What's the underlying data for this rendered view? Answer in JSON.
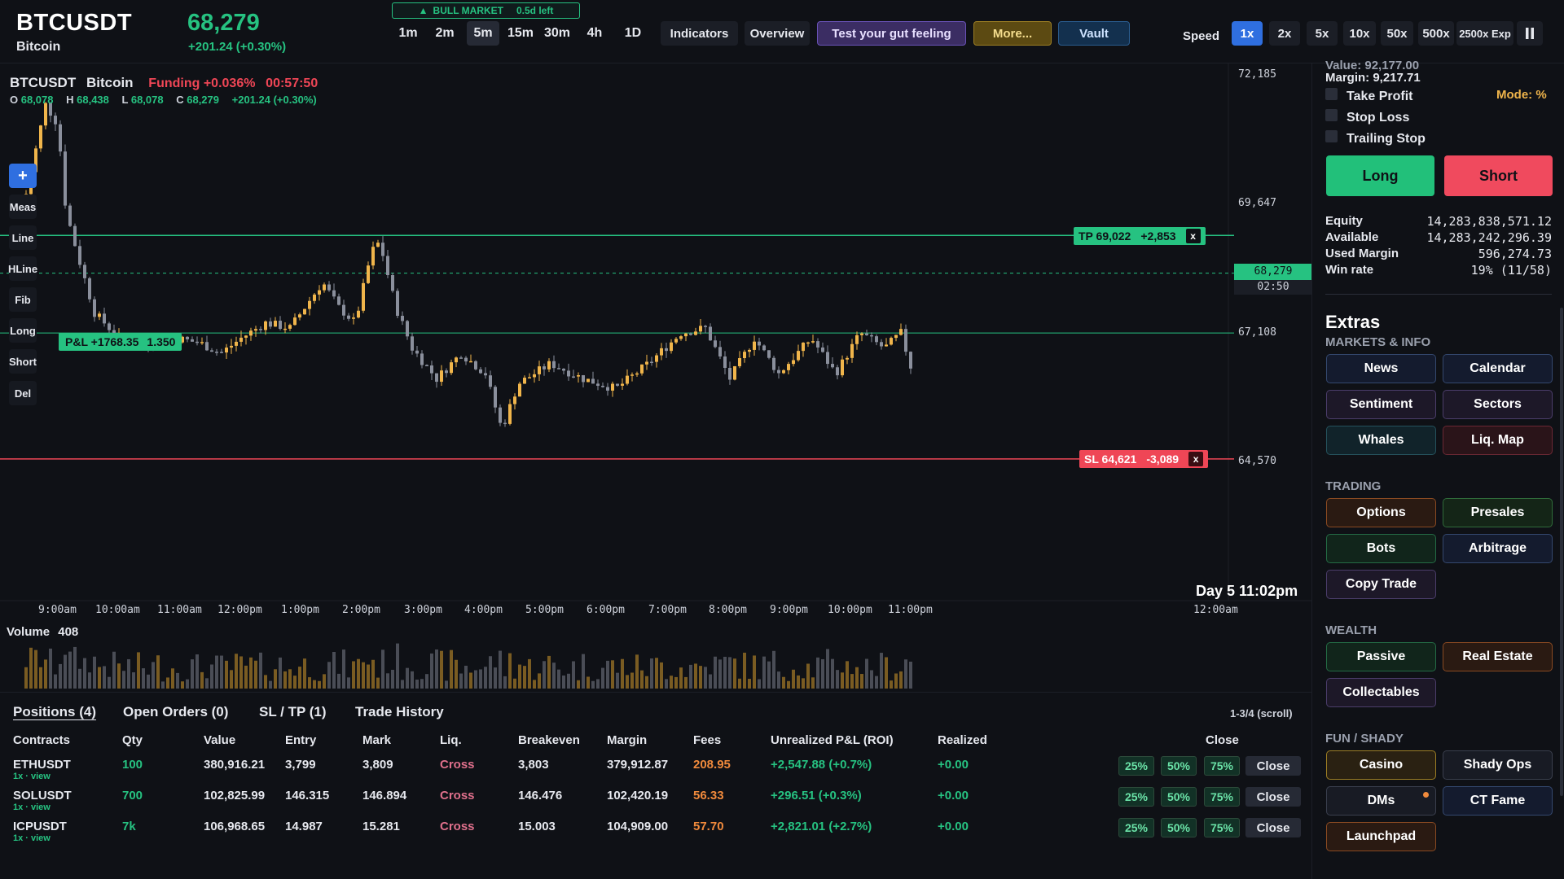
{
  "header": {
    "symbol": "BTCUSDT",
    "name": "Bitcoin",
    "price": "68,279",
    "change": "+201.24 (+0.30%)",
    "market_badge": "BULL MARKET",
    "market_left": "0.5d left",
    "timeframes": [
      "1m",
      "2m",
      "5m",
      "15m",
      "30m",
      "4h",
      "1D"
    ],
    "active_timeframe": "5m",
    "buttons": {
      "indicators": "Indicators",
      "overview": "Overview",
      "gut": "Test your gut feeling",
      "more": "More...",
      "vault": "Vault"
    },
    "speed_label": "Speed",
    "speeds": [
      "1x",
      "2x",
      "5x",
      "10x",
      "50x",
      "500x",
      "2500x Exp"
    ],
    "active_speed": "1x",
    "pause_icon": "pause-icon"
  },
  "chart": {
    "title_symbol": "BTCUSDT",
    "title_name": "Bitcoin",
    "funding": "Funding +0.036%",
    "funding_timer": "00:57:50",
    "ohlc": {
      "o": "68,078",
      "h": "68,438",
      "l": "68,078",
      "c": "68,279",
      "chg": "+201.24 (+0.30%)"
    },
    "tools": [
      "Meas",
      "Line",
      "HLine",
      "Fib",
      "Long",
      "Short",
      "Del"
    ],
    "y_ticks": [
      "72,185",
      "69,647",
      "67,108",
      "64,570"
    ],
    "time_ticks": [
      "9:00am",
      "10:00am",
      "11:00am",
      "12:00pm",
      "1:00pm",
      "2:00pm",
      "3:00pm",
      "4:00pm",
      "5:00pm",
      "6:00pm",
      "7:00pm",
      "8:00pm",
      "9:00pm",
      "10:00pm",
      "11:00pm",
      "12:00am"
    ],
    "day_label": "Day 5 11:02pm",
    "price_tag": "68,279",
    "countdown": "02:50",
    "tp_label": "TP 69,022",
    "tp_diff": "+2,853",
    "sl_label": "SL 64,621",
    "sl_diff": "-3,089",
    "pnl_label": "P&L +1768.35",
    "pnl_size": "1.350",
    "volume_label": "Volume",
    "volume_value": "408",
    "tp_price": 69022,
    "sl_price": 64621,
    "entry_price": 67100,
    "last_price": 68279,
    "colors": {
      "up": "#f0b54b",
      "down": "#8a8f9c",
      "tp": "#26c281",
      "sl": "#ef4656"
    }
  },
  "positions": {
    "tabs": [
      "Positions (4)",
      "Open Orders (0)",
      "SL / TP (1)",
      "Trade History"
    ],
    "scroll_info": "1-3/4  (scroll)",
    "headers": [
      "Contracts",
      "Qty",
      "Value",
      "Entry",
      "Mark",
      "Liq.",
      "Breakeven",
      "Margin",
      "Fees",
      "Unrealized P&L (ROI)",
      "Realized",
      "Close"
    ],
    "close_pcts": [
      "25%",
      "50%",
      "75%"
    ],
    "close_label": "Close",
    "rows": [
      {
        "contract": "ETHUSDT",
        "sub": "1x · view",
        "qty": "100",
        "value": "380,916.21",
        "entry": "3,799",
        "mark": "3,809",
        "liq": "Cross",
        "breakeven": "3,803",
        "margin": "379,912.87",
        "fees": "208.95",
        "upnl": "+2,547.88 (+0.7%)",
        "realized": "+0.00"
      },
      {
        "contract": "SOLUSDT",
        "sub": "1x · view",
        "qty": "700",
        "value": "102,825.99",
        "entry": "146.315",
        "mark": "146.894",
        "liq": "Cross",
        "breakeven": "146.476",
        "margin": "102,420.19",
        "fees": "56.33",
        "upnl": "+296.51 (+0.3%)",
        "realized": "+0.00"
      },
      {
        "contract": "ICPUSDT",
        "sub": "1x · view",
        "qty": "7k",
        "value": "106,968.65",
        "entry": "14.987",
        "mark": "15.281",
        "liq": "Cross",
        "breakeven": "15.003",
        "margin": "104,909.00",
        "fees": "57.70",
        "upnl": "+2,821.01 (+2.7%)",
        "realized": "+0.00"
      }
    ]
  },
  "panel": {
    "value_cut": "Value: 92,177.00",
    "margin": "Margin: 9,217.71",
    "take_profit": "Take Profit",
    "stop_loss": "Stop Loss",
    "trailing_stop": "Trailing Stop",
    "mode": "Mode: %",
    "long": "Long",
    "short": "Short",
    "equity_label": "Equity",
    "equity": "14,283,838,571.12",
    "available_label": "Available",
    "available": "14,283,242,296.39",
    "used_label": "Used Margin",
    "used": "596,274.73",
    "winrate_label": "Win rate",
    "winrate": "19% (11/58)",
    "extras": "Extras",
    "sections": {
      "markets": "MARKETS & INFO",
      "trading": "TRADING",
      "wealth": "WEALTH",
      "fun": "FUN / SHADY"
    },
    "markets_buttons": [
      "News",
      "Calendar",
      "Sentiment",
      "Sectors",
      "Whales",
      "Liq. Map"
    ],
    "trading_buttons": [
      "Options",
      "Presales",
      "Bots",
      "Arbitrage",
      "Copy Trade"
    ],
    "wealth_buttons": [
      "Passive",
      "Real Estate",
      "Collectables"
    ],
    "fun_buttons": [
      "Casino",
      "Shady Ops",
      "DMs",
      "CT Fame",
      "Launchpad"
    ]
  }
}
